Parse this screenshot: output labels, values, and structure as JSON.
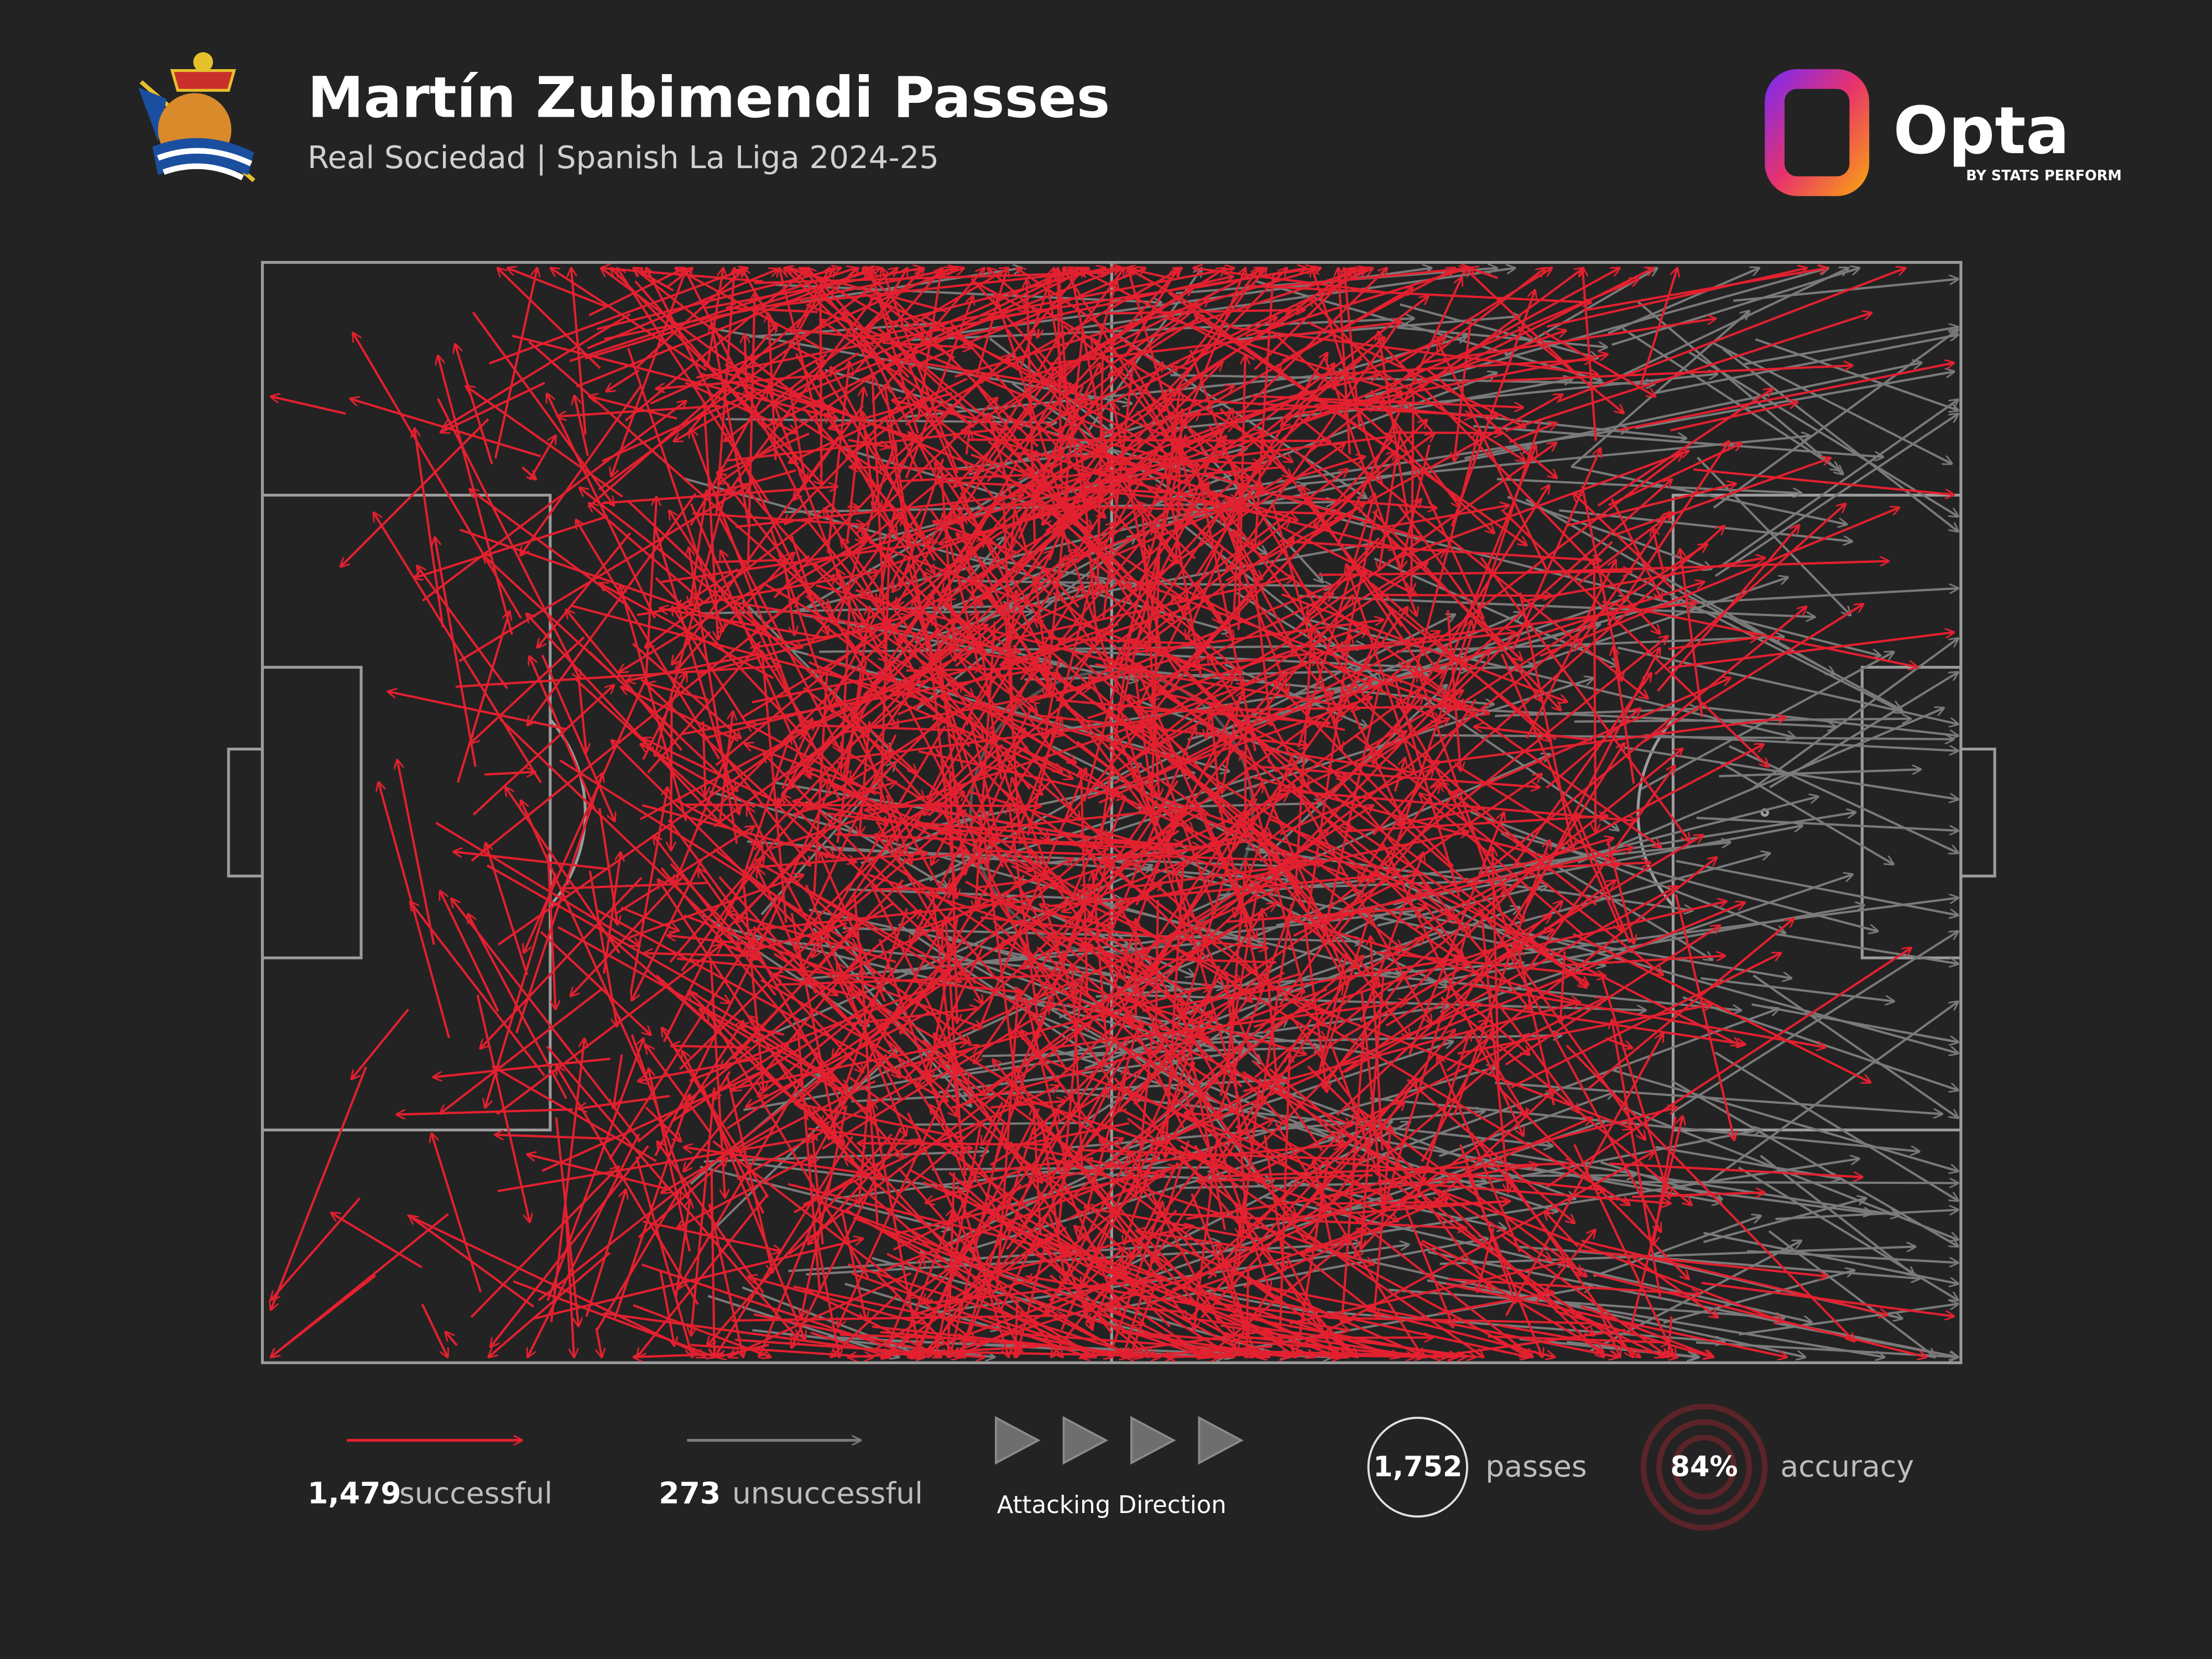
{
  "header": {
    "title": "Martín Zubimendi Passes",
    "subtitle": "Real Sociedad | Spanish La Liga 2024-25"
  },
  "brand": {
    "name": "Opta",
    "tagline": "BY STATS PERFORM"
  },
  "legend": {
    "successful": {
      "count": {
        "value": 1479,
        "label": "1,479"
      },
      "label": "successful",
      "color": "#e3202f"
    },
    "unsuccessful": {
      "count": 273,
      "label": "unsuccessful",
      "color": "#7a7a7a"
    },
    "direction": "Attacking Direction"
  },
  "stats": {
    "passes": {
      "count": {
        "value": 1752,
        "label": "1,752"
      },
      "label": "passes"
    },
    "accuracy": {
      "count": {
        "value": 84,
        "label": "84%"
      },
      "label": "accuracy"
    }
  }
}
